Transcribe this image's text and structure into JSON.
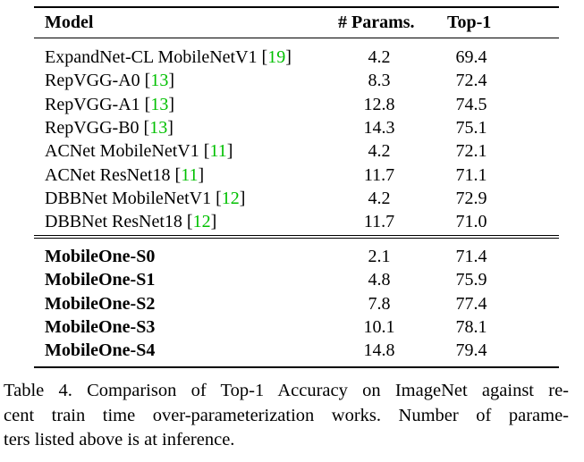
{
  "table": {
    "header": [
      "Model",
      "# Params.",
      "Top-1"
    ],
    "groups": [
      {
        "bold": false,
        "rows": [
          {
            "model": "ExpandNet-CL MobileNetV1",
            "cite": [
              "[",
              "19",
              "]"
            ],
            "params": "4.2",
            "top1": "69.4"
          },
          {
            "model": "RepVGG-A0",
            "cite": [
              "[",
              "13",
              "]"
            ],
            "params": "8.3",
            "top1": "72.4"
          },
          {
            "model": "RepVGG-A1",
            "cite": [
              "[",
              "13",
              "]"
            ],
            "params": "12.8",
            "top1": "74.5"
          },
          {
            "model": "RepVGG-B0",
            "cite": [
              "[",
              "13",
              "]"
            ],
            "params": "14.3",
            "top1": "75.1"
          },
          {
            "model": "ACNet MobileNetV1",
            "cite": [
              "[",
              "11",
              "]"
            ],
            "params": "4.2",
            "top1": "72.1"
          },
          {
            "model": "ACNet ResNet18",
            "cite": [
              "[",
              "11",
              "]"
            ],
            "params": "11.7",
            "top1": "71.1"
          },
          {
            "model": "DBBNet MobileNetV1",
            "cite": [
              "[",
              "12",
              "]"
            ],
            "params": "4.2",
            "top1": "72.9"
          },
          {
            "model": "DBBNet ResNet18",
            "cite": [
              "[",
              "12",
              "]"
            ],
            "params": "11.7",
            "top1": "71.0"
          }
        ]
      },
      {
        "bold": true,
        "rows": [
          {
            "model": "MobileOne-S0",
            "params": "2.1",
            "top1": "71.4"
          },
          {
            "model": "MobileOne-S1",
            "params": "4.8",
            "top1": "75.9"
          },
          {
            "model": "MobileOne-S2",
            "params": "7.8",
            "top1": "77.4"
          },
          {
            "model": "MobileOne-S3",
            "params": "10.1",
            "top1": "78.1"
          },
          {
            "model": "MobileOne-S4",
            "params": "14.8",
            "top1": "79.4"
          }
        ]
      }
    ]
  },
  "caption": [
    "Table 4. Comparison of Top-1 Accuracy on ImageNet against re-",
    "cent train time over-parameterization works. Number of parame-",
    "ters listed above is at inference."
  ]
}
